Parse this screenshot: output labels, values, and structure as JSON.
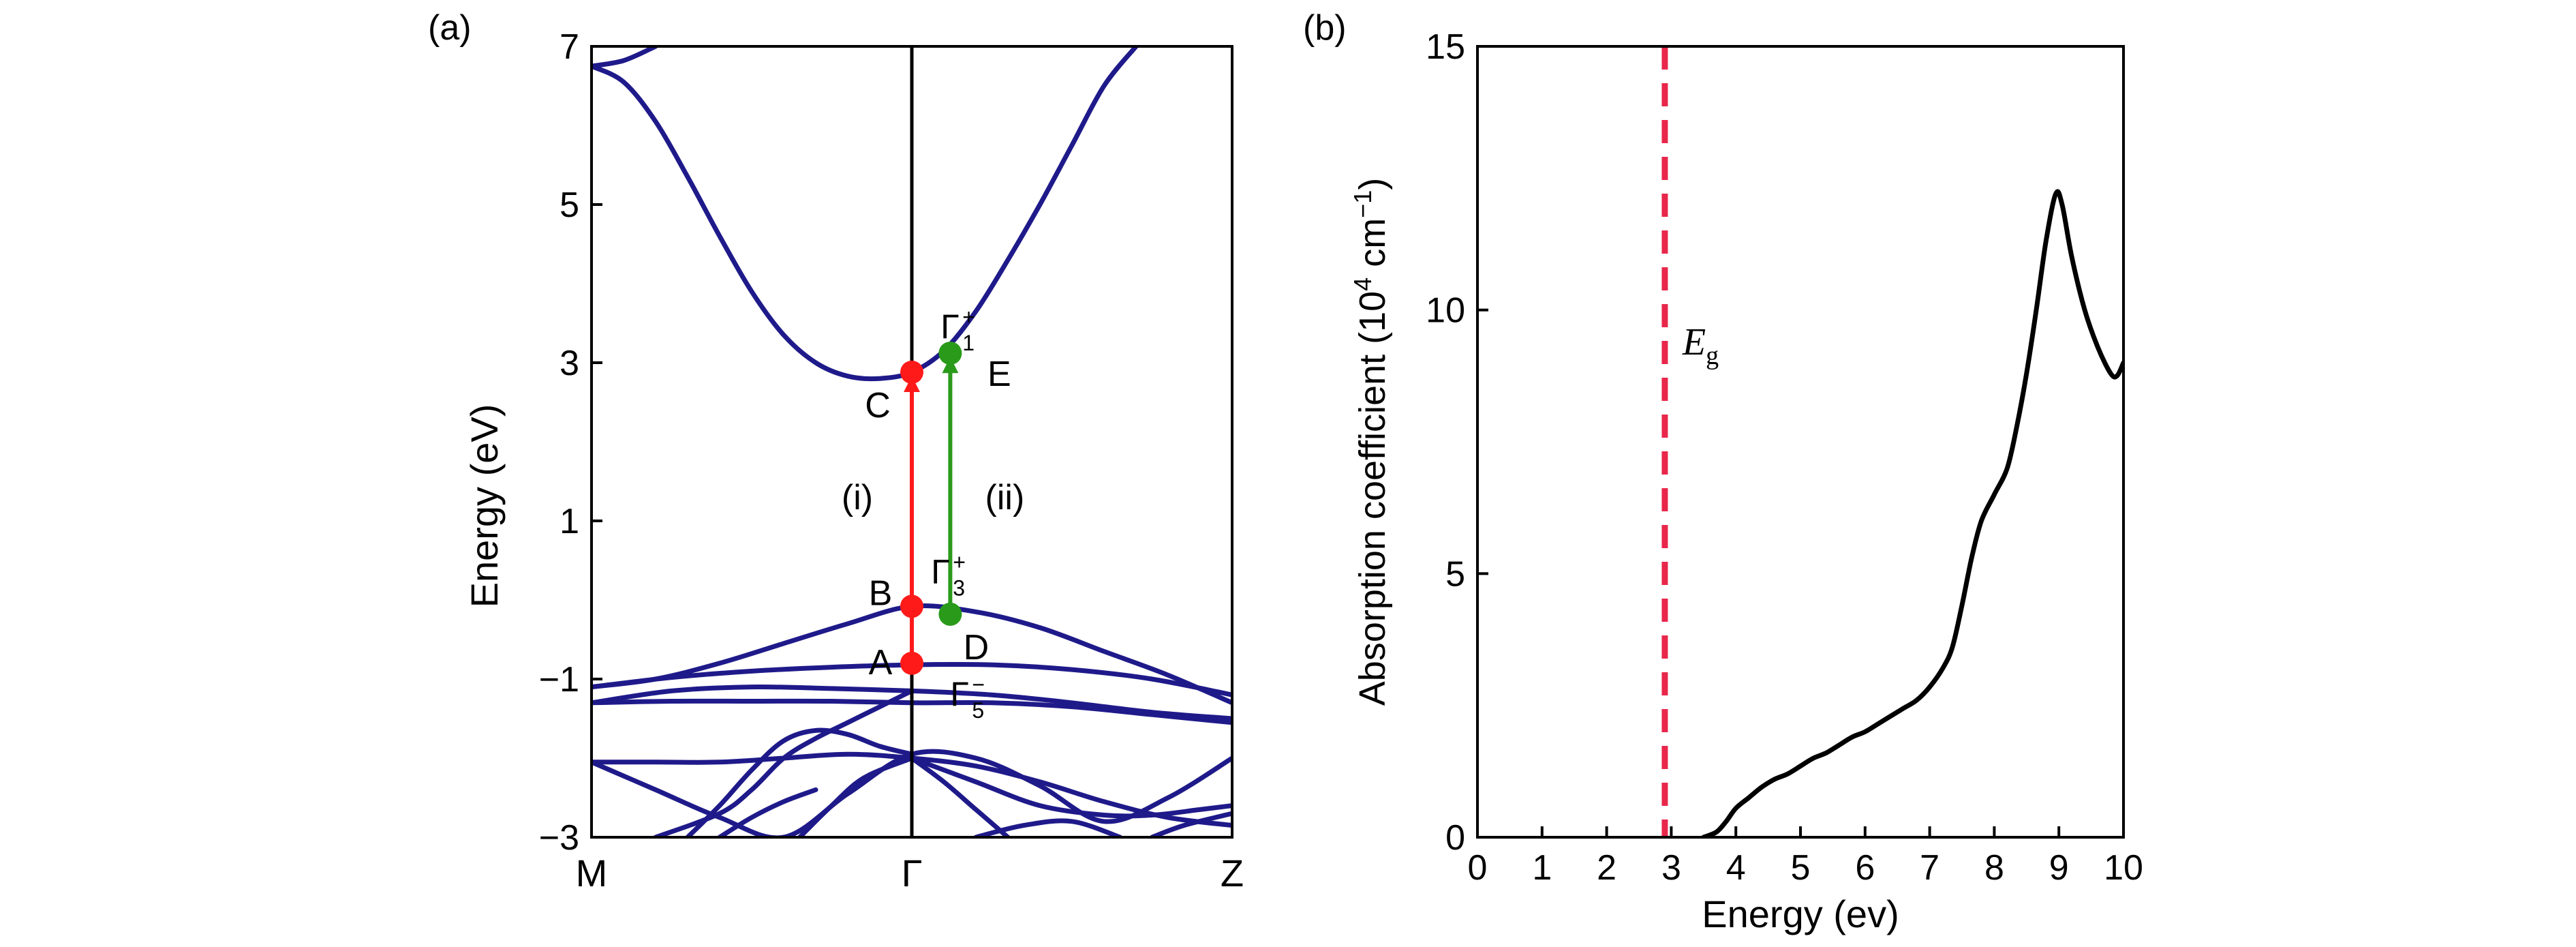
{
  "chart_data": [
    {
      "type": "line",
      "panel_label": "(a)",
      "ylabel": "Energy (eV)",
      "ylim": [
        -3,
        7
      ],
      "yticks": [
        "−3",
        "−1",
        "1",
        "3",
        "5",
        "7"
      ],
      "ytick_values": [
        -3,
        -1,
        1,
        3,
        5,
        7
      ],
      "xtick_labels": [
        "M",
        "Γ",
        "Z"
      ],
      "xtick_positions": [
        0,
        1,
        2
      ],
      "xlim": [
        0,
        2
      ],
      "gamma_line": 1,
      "colors": {
        "bands": "#1f1a8a",
        "red": "#ff1a1a",
        "green": "#2a9a1a",
        "gamma_line": "#000000"
      },
      "series": [
        {
          "x": [
            0,
            0.1,
            0.2,
            0.3,
            0.4,
            0.5,
            0.6,
            0.7,
            0.8,
            0.9,
            1.0,
            1.1,
            1.2,
            1.3,
            1.4,
            1.5,
            1.6,
            1.7
          ],
          "y": [
            6.75,
            6.55,
            6.05,
            5.35,
            4.6,
            3.9,
            3.35,
            3.0,
            2.83,
            2.8,
            2.88,
            3.15,
            3.65,
            4.3,
            5.0,
            5.75,
            6.5,
            7.0
          ]
        },
        {
          "x": [
            0,
            0.1,
            0.2
          ],
          "y": [
            6.75,
            6.82,
            7.0
          ]
        },
        {
          "x": [
            0,
            0.2,
            0.4,
            0.6,
            0.8,
            1.0,
            1.2,
            1.4,
            1.6,
            1.8,
            2.0
          ],
          "y": [
            -1.1,
            -1.0,
            -0.8,
            -0.55,
            -0.3,
            -0.08,
            -0.15,
            -0.35,
            -0.65,
            -0.95,
            -1.3
          ]
        },
        {
          "x": [
            0,
            0.25,
            0.5,
            0.75,
            1.0,
            1.25,
            1.5,
            1.75,
            2.0
          ],
          "y": [
            -1.1,
            -0.98,
            -0.9,
            -0.85,
            -0.82,
            -0.82,
            -0.88,
            -1.0,
            -1.2
          ]
        },
        {
          "x": [
            0,
            0.25,
            0.5,
            0.75,
            1.0,
            1.25,
            1.5,
            1.75,
            2.0
          ],
          "y": [
            -1.3,
            -1.15,
            -1.1,
            -1.12,
            -1.15,
            -1.2,
            -1.3,
            -1.42,
            -1.5
          ]
        },
        {
          "x": [
            0,
            0.25,
            0.5,
            0.75,
            1.0,
            1.25,
            1.5,
            1.75,
            2.0
          ],
          "y": [
            -1.3,
            -1.28,
            -1.28,
            -1.28,
            -1.3,
            -1.3,
            -1.35,
            -1.45,
            -1.55
          ]
        },
        {
          "x": [
            0,
            0.2,
            0.4,
            0.6,
            0.8,
            1.0,
            1.2,
            1.4,
            1.6,
            1.8,
            2.0
          ],
          "y": [
            -2.05,
            -2.05,
            -2.05,
            -2.0,
            -1.95,
            -2.0,
            -2.1,
            -2.3,
            -2.55,
            -2.75,
            -2.85
          ]
        },
        {
          "x": [
            0,
            0.2,
            0.4,
            0.6,
            0.8,
            1.0,
            1.2,
            1.4,
            1.6,
            1.8,
            2.0
          ],
          "y": [
            -2.05,
            -2.4,
            -2.75,
            -3.0,
            -2.45,
            -1.95,
            -2.0,
            -2.35,
            -2.8,
            -2.5,
            -2.0
          ]
        },
        {
          "x": [
            0.2,
            0.4,
            0.5,
            0.6,
            0.7,
            0.8,
            1.0
          ],
          "y": [
            -3.0,
            -2.7,
            -2.4,
            -2.0,
            -1.75,
            -1.55,
            -1.15
          ]
        },
        {
          "x": [
            0.3,
            0.4,
            0.5,
            0.6,
            0.7,
            0.8,
            0.9,
            1.0
          ],
          "y": [
            -3.0,
            -2.6,
            -2.15,
            -1.78,
            -1.65,
            -1.7,
            -1.85,
            -1.95
          ]
        },
        {
          "x": [
            0.4,
            0.5,
            0.6,
            0.7
          ],
          "y": [
            -3.0,
            -2.75,
            -2.55,
            -2.4
          ]
        },
        {
          "x": [
            0.65,
            0.75,
            0.85,
            1.0
          ],
          "y": [
            -3.0,
            -2.6,
            -2.25,
            -2.0
          ]
        },
        {
          "x": [
            1.0,
            1.1,
            1.2,
            1.3
          ],
          "y": [
            -2.0,
            -2.3,
            -2.65,
            -3.0
          ]
        },
        {
          "x": [
            1.0,
            1.2,
            1.4,
            1.6,
            1.75,
            1.9,
            2.0
          ],
          "y": [
            -2.0,
            -2.3,
            -2.6,
            -2.72,
            -2.72,
            -2.65,
            -2.6
          ]
        },
        {
          "x": [
            1.2,
            1.35,
            1.5,
            1.65
          ],
          "y": [
            -3.0,
            -2.85,
            -2.8,
            -3.0
          ]
        },
        {
          "x": [
            1.75,
            1.85,
            2.0
          ],
          "y": [
            -3.0,
            -2.85,
            -2.7
          ]
        }
      ],
      "points": [
        {
          "label": "A",
          "x": 1.0,
          "y": -0.8,
          "color": "red"
        },
        {
          "label": "B",
          "x": 1.0,
          "y": -0.08,
          "color": "red"
        },
        {
          "label": "C",
          "x": 1.0,
          "y": 2.88,
          "color": "red"
        },
        {
          "label": "D",
          "x": 1.12,
          "y": -0.18,
          "color": "green"
        },
        {
          "label": "E",
          "x": 1.12,
          "y": 3.12,
          "color": "green"
        }
      ],
      "transitions": [
        {
          "label": "(i)",
          "x": 1.0,
          "y_from": -0.8,
          "y_to": 2.88,
          "color": "red"
        },
        {
          "label": "(ii)",
          "x": 1.12,
          "y_from": -0.18,
          "y_to": 3.12,
          "color": "green"
        }
      ],
      "symmetry_labels": [
        {
          "base": "Γ",
          "sup": "+",
          "sub": "1",
          "x": 1.09,
          "y": 3.45
        },
        {
          "base": "Γ",
          "sup": "+",
          "sub": "3",
          "x": 1.06,
          "y": 0.35
        },
        {
          "base": "Γ",
          "sup": "−",
          "sub": "5",
          "x": 1.12,
          "y": -1.2
        }
      ]
    },
    {
      "type": "line",
      "panel_label": "(b)",
      "xlabel": "Energy (ev)",
      "ylabel": "Absorption coefficient (10",
      "ylabel_sup": "4",
      "ylabel_unit": " cm",
      "ylabel_unit_sup": "−1",
      "ylabel_close": ")",
      "xlim": [
        0,
        10
      ],
      "ylim": [
        0,
        15
      ],
      "xticks": [
        0,
        1,
        2,
        3,
        4,
        5,
        6,
        7,
        8,
        9,
        10
      ],
      "yticks": [
        0,
        5,
        10,
        15
      ],
      "colors": {
        "curve": "#000000",
        "eg_line": "#e8274b"
      },
      "series": [
        {
          "x": [
            3.5,
            3.7,
            3.85,
            4.0,
            4.2,
            4.4,
            4.6,
            4.8,
            5.0,
            5.2,
            5.4,
            5.6,
            5.8,
            6.0,
            6.2,
            6.4,
            6.6,
            6.8,
            7.0,
            7.2,
            7.35,
            7.5,
            7.65,
            7.8,
            8.0,
            8.2,
            8.35,
            8.5,
            8.65,
            8.8,
            8.95,
            9.05,
            9.2,
            9.4,
            9.6,
            9.8,
            9.9,
            10.0
          ],
          "y": [
            0.0,
            0.1,
            0.3,
            0.55,
            0.75,
            0.95,
            1.1,
            1.2,
            1.35,
            1.5,
            1.6,
            1.75,
            1.9,
            2.0,
            2.15,
            2.3,
            2.45,
            2.6,
            2.85,
            3.2,
            3.6,
            4.4,
            5.3,
            6.0,
            6.5,
            7.0,
            7.8,
            8.8,
            10.0,
            11.3,
            12.2,
            12.0,
            11.0,
            10.0,
            9.3,
            8.8,
            8.75,
            9.0
          ]
        }
      ],
      "eg_line": {
        "label_base": "E",
        "label_sub": "g",
        "x": 2.9
      }
    }
  ]
}
